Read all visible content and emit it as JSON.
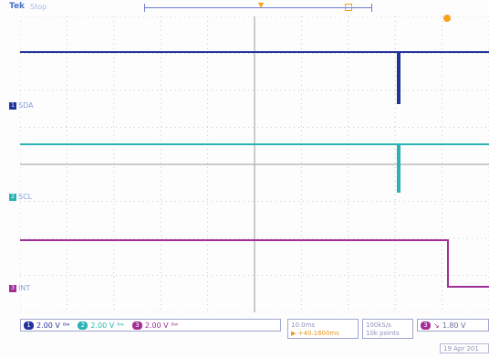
{
  "header": {
    "brand": "Tek",
    "state": "Stop"
  },
  "channels": [
    {
      "id": "1",
      "name": "SDA",
      "color": "#1f2f9a",
      "scale": "2.00 V"
    },
    {
      "id": "2",
      "name": "SCL",
      "color": "#2bb3b3",
      "scale": "2.00 V"
    },
    {
      "id": "3",
      "name": "INT",
      "color": "#a12f97",
      "scale": "2.00 V"
    }
  ],
  "timebase": {
    "horizontal_scale": "10.0ms",
    "delay": "+40.1600ms"
  },
  "acquisition": {
    "sample_rate": "100kS/s",
    "record_length": "10k points"
  },
  "trigger": {
    "source": "3",
    "level": "1.80 V"
  },
  "date": "19 Apr 201",
  "icons": {
    "coupling": "bandwidth-icon",
    "slope": "falling-edge-icon"
  }
}
